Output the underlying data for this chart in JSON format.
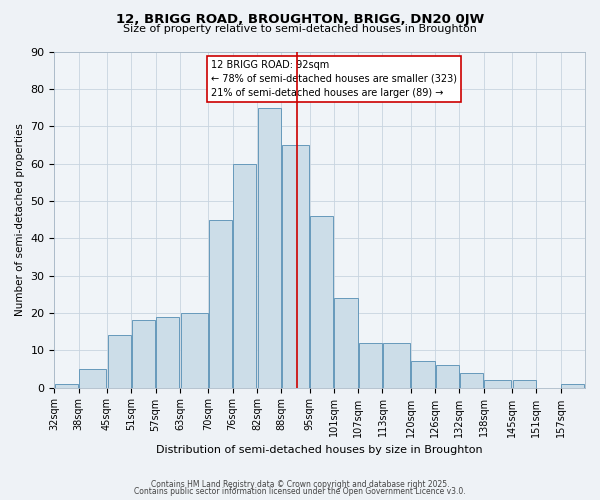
{
  "title": "12, BRIGG ROAD, BROUGHTON, BRIGG, DN20 0JW",
  "subtitle": "Size of property relative to semi-detached houses in Broughton",
  "xlabel": "Distribution of semi-detached houses by size in Broughton",
  "ylabel": "Number of semi-detached properties",
  "bar_labels": [
    "32sqm",
    "38sqm",
    "45sqm",
    "51sqm",
    "57sqm",
    "63sqm",
    "70sqm",
    "76sqm",
    "82sqm",
    "88sqm",
    "95sqm",
    "101sqm",
    "107sqm",
    "113sqm",
    "120sqm",
    "126sqm",
    "132sqm",
    "138sqm",
    "145sqm",
    "151sqm",
    "157sqm"
  ],
  "bar_values": [
    1,
    5,
    14,
    18,
    19,
    20,
    45,
    60,
    75,
    65,
    46,
    24,
    12,
    12,
    7,
    6,
    4,
    2,
    2,
    0,
    1
  ],
  "bar_color": "#ccdde8",
  "bar_edge_color": "#6699bb",
  "vline_color": "#cc0000",
  "bin_edges": [
    32,
    38,
    45,
    51,
    57,
    63,
    70,
    76,
    82,
    88,
    95,
    101,
    107,
    113,
    120,
    126,
    132,
    138,
    145,
    151,
    157,
    163
  ],
  "vline_x": 92,
  "ylim": [
    0,
    90
  ],
  "yticks": [
    0,
    10,
    20,
    30,
    40,
    50,
    60,
    70,
    80,
    90
  ],
  "annotation_title": "12 BRIGG ROAD: 92sqm",
  "annotation_line1": "← 78% of semi-detached houses are smaller (323)",
  "annotation_line2": "21% of semi-detached houses are larger (89) →",
  "footer1": "Contains HM Land Registry data © Crown copyright and database right 2025.",
  "footer2": "Contains public sector information licensed under the Open Government Licence v3.0.",
  "bg_color": "#eef2f6",
  "plot_bg_color": "#f0f4f8"
}
